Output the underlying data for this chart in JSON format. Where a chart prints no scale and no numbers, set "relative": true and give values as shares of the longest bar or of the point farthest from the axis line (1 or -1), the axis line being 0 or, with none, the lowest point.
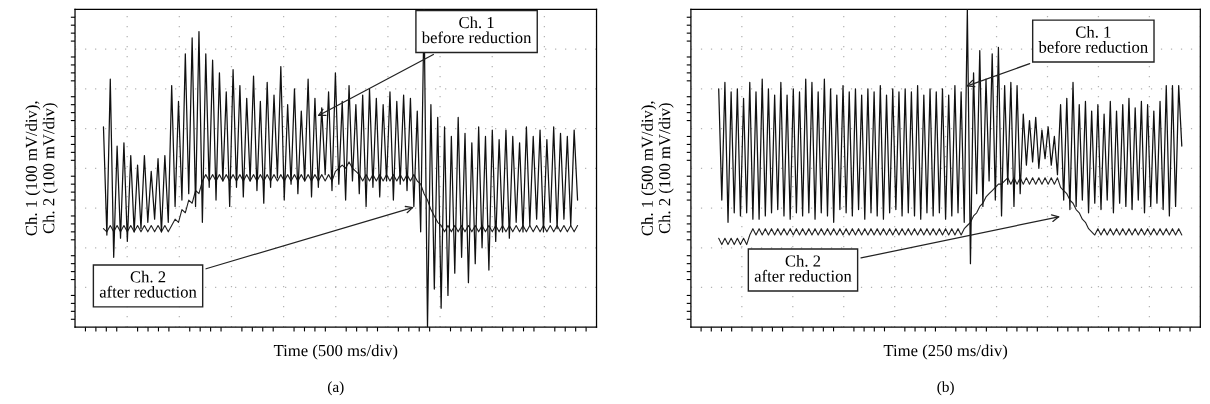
{
  "chart_data": [
    {
      "type": "line",
      "title": "(a)",
      "xlabel": "Time (500 ms/div)",
      "ylabel": "Ch. 1 (100 mV/div),\nCh. 2 (100 mV/div)",
      "relative": true,
      "grid": true,
      "legend": false,
      "tick_labels": false,
      "marker": "none",
      "line_style": "solid",
      "categories": [
        null,
        null,
        null,
        null,
        null,
        null,
        null,
        null,
        null,
        null,
        null,
        null,
        null,
        null,
        null,
        null,
        null,
        null,
        null,
        null,
        null,
        null,
        null,
        null,
        null,
        null,
        null,
        null,
        null,
        null,
        null,
        null,
        null,
        null,
        null,
        null,
        null,
        null,
        null,
        null,
        null,
        null,
        null,
        null,
        null,
        null,
        null,
        null,
        null,
        null,
        null,
        null,
        null,
        null,
        null,
        null,
        null,
        null,
        null,
        null,
        null,
        null,
        null,
        null,
        null,
        null,
        null,
        null,
        null,
        null,
        null,
        null,
        null,
        null,
        null,
        null,
        null,
        null,
        null,
        null,
        null,
        null,
        null,
        null,
        null,
        null,
        null,
        null,
        null,
        null,
        null,
        null,
        null,
        null,
        null,
        null,
        null,
        null,
        null,
        null,
        null,
        null,
        null,
        null,
        null,
        null,
        null,
        null,
        null,
        null,
        null,
        null,
        null,
        null,
        null,
        null,
        null,
        null,
        null,
        null,
        null,
        null,
        null,
        null,
        null,
        null,
        null,
        null,
        null,
        null,
        null,
        null,
        null,
        null,
        null,
        null,
        null,
        null,
        null,
        null
      ],
      "series": [
        {
          "name": "Ch. 1\nbefore reduction",
          "color": "#111111",
          "values": [
            0.63,
            0.29,
            0.78,
            0.22,
            0.57,
            0.28,
            0.58,
            0.27,
            0.54,
            0.3,
            0.51,
            0.31,
            0.54,
            0.33,
            0.49,
            0.34,
            0.53,
            0.3,
            0.54,
            0.33,
            0.76,
            0.38,
            0.71,
            0.4,
            0.86,
            0.42,
            0.91,
            0.38,
            0.93,
            0.33,
            0.86,
            0.44,
            0.84,
            0.4,
            0.8,
            0.46,
            0.74,
            0.38,
            0.81,
            0.44,
            0.76,
            0.41,
            0.72,
            0.46,
            0.79,
            0.43,
            0.71,
            0.39,
            0.77,
            0.44,
            0.73,
            0.47,
            0.82,
            0.4,
            0.7,
            0.45,
            0.75,
            0.42,
            0.68,
            0.46,
            0.78,
            0.41,
            0.72,
            0.44,
            0.69,
            0.48,
            0.74,
            0.43,
            0.8,
            0.45,
            0.71,
            0.4,
            0.76,
            0.46,
            0.7,
            0.42,
            0.73,
            0.38,
            0.75,
            0.44,
            0.72,
            0.41,
            0.7,
            0.46,
            0.74,
            0.4,
            0.71,
            0.45,
            0.73,
            0.43,
            0.72,
            0.38,
            0.68,
            0.3,
            1.0,
            0.0,
            0.7,
            0.12,
            0.66,
            0.06,
            0.63,
            0.1,
            0.6,
            0.17,
            0.66,
            0.22,
            0.61,
            0.14,
            0.58,
            0.2,
            0.63,
            0.25,
            0.6,
            0.18,
            0.62,
            0.27,
            0.59,
            0.3,
            0.62,
            0.28,
            0.6,
            0.33,
            0.58,
            0.3,
            0.63,
            0.32,
            0.6,
            0.34,
            0.62,
            0.3,
            0.59,
            0.33,
            0.63,
            0.31,
            0.61,
            0.34,
            0.6,
            0.32,
            0.62,
            0.4
          ]
        },
        {
          "name": "Ch. 2\nafter reduction",
          "color": "#222222",
          "values": [
            0.31,
            0.3,
            0.32,
            0.3,
            0.32,
            0.3,
            0.32,
            0.3,
            0.32,
            0.3,
            0.32,
            0.3,
            0.32,
            0.3,
            0.32,
            0.3,
            0.32,
            0.3,
            0.32,
            0.3,
            0.32,
            0.34,
            0.33,
            0.37,
            0.36,
            0.4,
            0.39,
            0.43,
            0.42,
            0.46,
            0.48,
            0.46,
            0.48,
            0.46,
            0.48,
            0.46,
            0.48,
            0.46,
            0.48,
            0.46,
            0.48,
            0.46,
            0.48,
            0.46,
            0.48,
            0.46,
            0.48,
            0.46,
            0.48,
            0.46,
            0.48,
            0.46,
            0.48,
            0.46,
            0.48,
            0.46,
            0.48,
            0.46,
            0.48,
            0.46,
            0.48,
            0.46,
            0.48,
            0.46,
            0.48,
            0.46,
            0.48,
            0.46,
            0.49,
            0.5,
            0.51,
            0.5,
            0.52,
            0.5,
            0.49,
            0.48,
            0.46,
            0.48,
            0.46,
            0.48,
            0.46,
            0.48,
            0.46,
            0.48,
            0.46,
            0.48,
            0.46,
            0.48,
            0.46,
            0.48,
            0.46,
            0.48,
            0.46,
            0.45,
            0.42,
            0.4,
            0.37,
            0.35,
            0.33,
            0.32,
            0.3,
            0.32,
            0.3,
            0.32,
            0.3,
            0.32,
            0.3,
            0.32,
            0.3,
            0.32,
            0.3,
            0.32,
            0.3,
            0.32,
            0.3,
            0.32,
            0.3,
            0.32,
            0.3,
            0.32,
            0.3,
            0.32,
            0.3,
            0.32,
            0.3,
            0.32,
            0.3,
            0.32,
            0.3,
            0.32,
            0.3,
            0.32,
            0.3,
            0.32,
            0.3,
            0.32,
            0.3,
            0.32,
            0.3,
            0.32
          ]
        }
      ]
    },
    {
      "type": "line",
      "title": "(b)",
      "xlabel": "Time (250 ms/div)",
      "ylabel": "Ch. 1 (500 mV/div),\nCh. 2 (100 mV/div)",
      "relative": true,
      "grid": true,
      "legend": false,
      "tick_labels": false,
      "marker": "none",
      "line_style": "solid",
      "categories": [
        null,
        null,
        null,
        null,
        null,
        null,
        null,
        null,
        null,
        null,
        null,
        null,
        null,
        null,
        null,
        null,
        null,
        null,
        null,
        null,
        null,
        null,
        null,
        null,
        null,
        null,
        null,
        null,
        null,
        null,
        null,
        null,
        null,
        null,
        null,
        null,
        null,
        null,
        null,
        null,
        null,
        null,
        null,
        null,
        null,
        null,
        null,
        null,
        null,
        null,
        null,
        null,
        null,
        null,
        null,
        null,
        null,
        null,
        null,
        null,
        null,
        null,
        null,
        null,
        null,
        null,
        null,
        null,
        null,
        null,
        null,
        null,
        null,
        null,
        null,
        null,
        null,
        null,
        null,
        null,
        null,
        null,
        null,
        null,
        null,
        null,
        null,
        null,
        null,
        null,
        null,
        null,
        null,
        null,
        null,
        null,
        null,
        null,
        null,
        null,
        null,
        null,
        null,
        null,
        null,
        null,
        null,
        null,
        null,
        null,
        null,
        null,
        null,
        null,
        null,
        null,
        null,
        null,
        null,
        null,
        null,
        null,
        null,
        null,
        null,
        null,
        null,
        null,
        null,
        null,
        null,
        null,
        null,
        null,
        null,
        null,
        null,
        null,
        null,
        null,
        null,
        null,
        null,
        null,
        null,
        null,
        null,
        null,
        null,
        null
      ],
      "series": [
        {
          "name": "Ch. 1\nbefore reduction",
          "color": "#111111",
          "values": [
            0.75,
            0.4,
            0.77,
            0.33,
            0.74,
            0.36,
            0.75,
            0.35,
            0.72,
            0.36,
            0.77,
            0.34,
            0.74,
            0.34,
            0.78,
            0.35,
            0.75,
            0.36,
            0.73,
            0.37,
            0.77,
            0.35,
            0.73,
            0.34,
            0.75,
            0.36,
            0.74,
            0.35,
            0.78,
            0.36,
            0.77,
            0.34,
            0.74,
            0.36,
            0.78,
            0.35,
            0.75,
            0.33,
            0.73,
            0.37,
            0.76,
            0.36,
            0.74,
            0.35,
            0.75,
            0.37,
            0.73,
            0.34,
            0.75,
            0.36,
            0.74,
            0.35,
            0.76,
            0.34,
            0.73,
            0.36,
            0.75,
            0.37,
            0.74,
            0.35,
            0.75,
            0.36,
            0.74,
            0.35,
            0.76,
            0.34,
            0.73,
            0.36,
            0.75,
            0.35,
            0.74,
            0.36,
            0.75,
            0.34,
            0.73,
            0.35,
            0.76,
            0.36,
            0.74,
            0.33,
            1.0,
            0.2,
            0.8,
            0.42,
            0.87,
            0.38,
            0.78,
            0.46,
            0.86,
            0.4,
            0.88,
            0.35,
            0.76,
            0.45,
            0.77,
            0.38,
            0.76,
            0.42,
            0.67,
            0.51,
            0.65,
            0.52,
            0.66,
            0.5,
            0.62,
            0.53,
            0.63,
            0.51,
            0.6,
            0.48,
            0.7,
            0.4,
            0.72,
            0.37,
            0.77,
            0.38,
            0.7,
            0.4,
            0.71,
            0.36,
            0.68,
            0.39,
            0.7,
            0.37,
            0.67,
            0.4,
            0.71,
            0.36,
            0.68,
            0.39,
            0.7,
            0.38,
            0.72,
            0.37,
            0.69,
            0.4,
            0.71,
            0.36,
            0.7,
            0.38,
            0.68,
            0.39,
            0.71,
            0.37,
            0.76,
            0.35,
            0.76,
            0.38,
            0.76,
            0.57
          ]
        },
        {
          "name": "Ch. 2\nafter reduction",
          "color": "#222222",
          "values": [
            0.28,
            0.26,
            0.28,
            0.26,
            0.28,
            0.26,
            0.28,
            0.26,
            0.28,
            0.26,
            0.29,
            0.31,
            0.29,
            0.31,
            0.29,
            0.31,
            0.29,
            0.31,
            0.29,
            0.31,
            0.29,
            0.31,
            0.29,
            0.31,
            0.29,
            0.31,
            0.29,
            0.31,
            0.29,
            0.31,
            0.29,
            0.31,
            0.29,
            0.31,
            0.29,
            0.31,
            0.29,
            0.31,
            0.29,
            0.31,
            0.29,
            0.31,
            0.29,
            0.31,
            0.29,
            0.31,
            0.29,
            0.31,
            0.29,
            0.31,
            0.29,
            0.31,
            0.29,
            0.31,
            0.29,
            0.31,
            0.29,
            0.31,
            0.29,
            0.31,
            0.29,
            0.31,
            0.29,
            0.31,
            0.29,
            0.31,
            0.29,
            0.31,
            0.29,
            0.31,
            0.29,
            0.31,
            0.29,
            0.31,
            0.29,
            0.31,
            0.29,
            0.31,
            0.29,
            0.31,
            0.32,
            0.33,
            0.35,
            0.36,
            0.38,
            0.39,
            0.41,
            0.42,
            0.43,
            0.44,
            0.45,
            0.45,
            0.46,
            0.47,
            0.45,
            0.47,
            0.45,
            0.47,
            0.45,
            0.47,
            0.45,
            0.47,
            0.45,
            0.47,
            0.45,
            0.47,
            0.45,
            0.47,
            0.45,
            0.47,
            0.44,
            0.43,
            0.42,
            0.4,
            0.39,
            0.37,
            0.36,
            0.34,
            0.33,
            0.31,
            0.3,
            0.29,
            0.31,
            0.29,
            0.31,
            0.29,
            0.31,
            0.29,
            0.31,
            0.29,
            0.31,
            0.29,
            0.31,
            0.29,
            0.31,
            0.29,
            0.31,
            0.29,
            0.31,
            0.29,
            0.31,
            0.29,
            0.31,
            0.29,
            0.31,
            0.29,
            0.31,
            0.29,
            0.31,
            0.29
          ]
        }
      ]
    }
  ]
}
